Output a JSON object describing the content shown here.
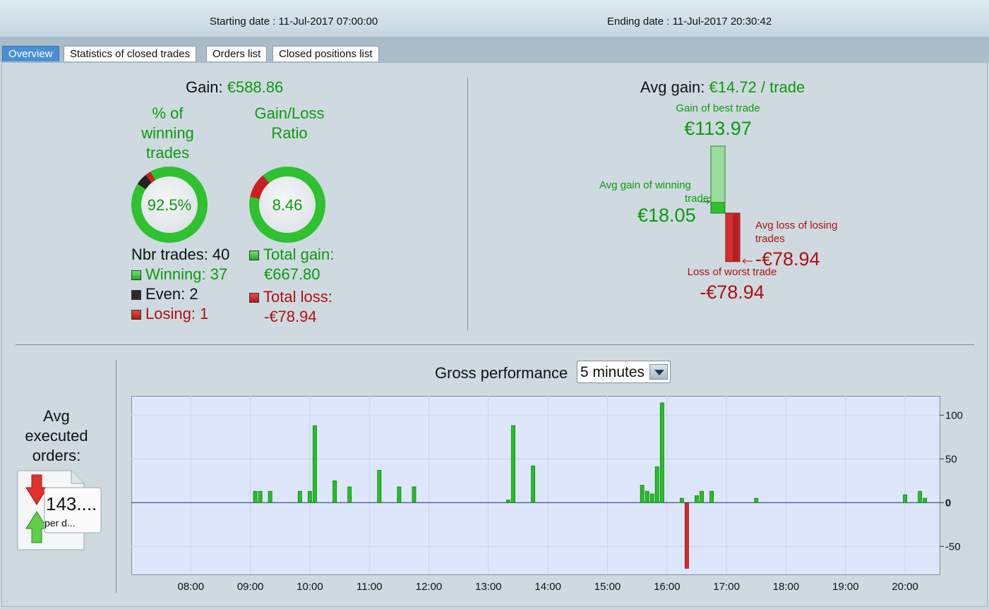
{
  "header": {
    "start_label": "Starting date : 11-Jul-2017 07:00:00",
    "end_label": "Ending date : 11-Jul-2017 20:30:42"
  },
  "tabs": [
    {
      "label": "Overview",
      "active": true
    },
    {
      "label": "Statistics of closed trades",
      "active": false
    },
    {
      "label": "Orders list",
      "active": false
    },
    {
      "label": "Closed positions list",
      "active": false
    }
  ],
  "summary": {
    "gain_label": "Gain:",
    "gain_value": "€588.86",
    "winning_pct_title": [
      "% of",
      "winning",
      "trades"
    ],
    "winning_pct_value": "92.5%",
    "winning_pct_fraction": 0.925,
    "even_fraction": 0.05,
    "losing_fraction": 0.025,
    "gainloss_title": [
      "Gain/Loss",
      "Ratio"
    ],
    "gainloss_value": "8.46",
    "gainloss_gain_fraction": 0.894,
    "nbr_trades_label": "Nbr trades: 40",
    "winning_label": "Winning: 37",
    "even_label": "Even: 2",
    "losing_label": "Losing: 1",
    "total_gain_label": "Total gain:",
    "total_gain_value": "€667.80",
    "total_loss_label": "Total loss:",
    "total_loss_value": "-€78.94"
  },
  "avg": {
    "avg_gain_label": "Avg gain:",
    "avg_gain_value": "€14.72 / trade",
    "best_trade_label": "Gain of best trade",
    "best_trade_value": "€113.97",
    "avg_win_label_1": "Avg gain of winning",
    "avg_win_label_2": "trades",
    "avg_win_value": "€18.05",
    "avg_loss_label_1": "Avg loss of losing",
    "avg_loss_label_2": "trades",
    "avg_loss_value": "-€78.94",
    "worst_trade_label": "Loss of worst trade",
    "worst_trade_value": "-€78.94",
    "best_trade": 113.97,
    "avg_win": 18.05,
    "avg_loss": -78.94,
    "worst_trade": -78.94
  },
  "orders": {
    "title": [
      "Avg",
      "executed",
      "orders:"
    ],
    "value": "143....",
    "sub": "per d..."
  },
  "performance": {
    "title": "Gross performance",
    "interval": "5 minutes"
  },
  "chart_data": {
    "type": "bar",
    "title": "Gross performance",
    "x_unit": "time of day (hours)",
    "xlim": [
      7.0,
      20.58
    ],
    "ylim": [
      -82,
      122
    ],
    "yticks": [
      100,
      50,
      0,
      -50
    ],
    "ytick_labels": [
      "100",
      "50",
      "0",
      "-50"
    ],
    "xticks": [
      8,
      9,
      10,
      11,
      12,
      13,
      14,
      15,
      16,
      17,
      18,
      19,
      20
    ],
    "xtick_labels": [
      "08:00",
      "09:00",
      "10:00",
      "11:00",
      "12:00",
      "13:00",
      "14:00",
      "15:00",
      "16:00",
      "17:00",
      "18:00",
      "19:00",
      "20:00"
    ],
    "grid": true,
    "bars": [
      {
        "t": 9.083,
        "v": 13
      },
      {
        "t": 9.167,
        "v": 13
      },
      {
        "t": 9.333,
        "v": 13
      },
      {
        "t": 9.833,
        "v": 13
      },
      {
        "t": 10.0,
        "v": 13
      },
      {
        "t": 10.083,
        "v": 88
      },
      {
        "t": 10.417,
        "v": 25
      },
      {
        "t": 10.667,
        "v": 18
      },
      {
        "t": 11.167,
        "v": 37
      },
      {
        "t": 11.5,
        "v": 18
      },
      {
        "t": 11.75,
        "v": 18
      },
      {
        "t": 13.333,
        "v": 3
      },
      {
        "t": 13.417,
        "v": 88
      },
      {
        "t": 13.75,
        "v": 42
      },
      {
        "t": 15.583,
        "v": 20
      },
      {
        "t": 15.667,
        "v": 13
      },
      {
        "t": 15.75,
        "v": 10
      },
      {
        "t": 15.833,
        "v": 41
      },
      {
        "t": 15.917,
        "v": 113.97
      },
      {
        "t": 16.25,
        "v": 5
      },
      {
        "t": 16.333,
        "v": -75
      },
      {
        "t": 16.5,
        "v": 8
      },
      {
        "t": 16.583,
        "v": 13
      },
      {
        "t": 16.75,
        "v": 13
      },
      {
        "t": 17.5,
        "v": 5
      },
      {
        "t": 20.0,
        "v": 9
      },
      {
        "t": 20.25,
        "v": 13
      },
      {
        "t": 20.333,
        "v": 5
      }
    ]
  }
}
